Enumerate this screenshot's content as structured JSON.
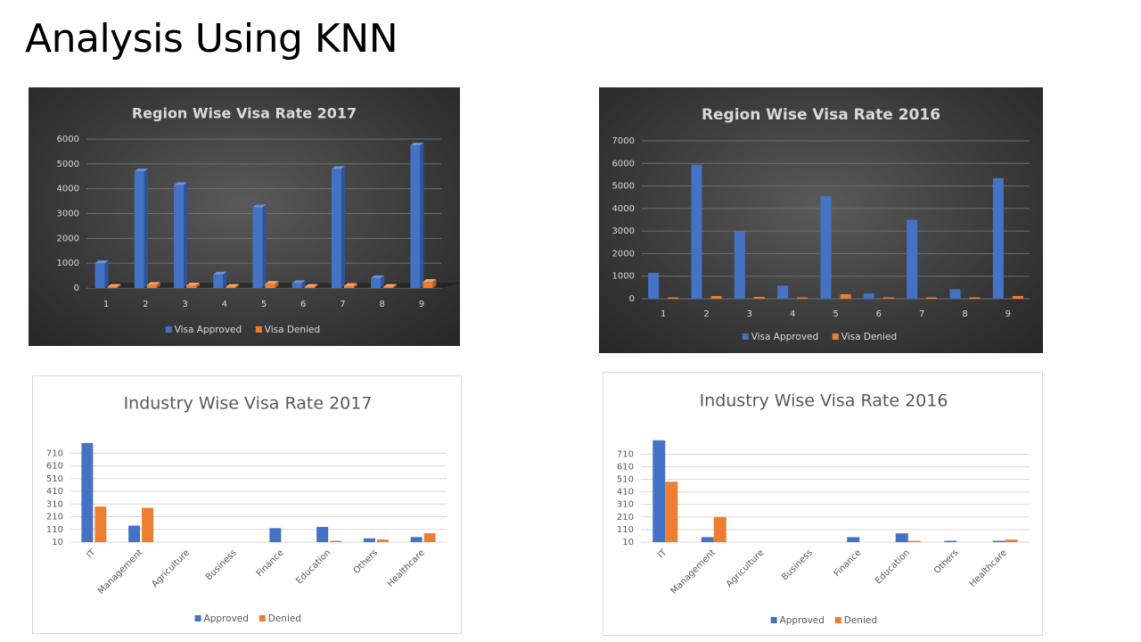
{
  "slide": {
    "title": "Analysis Using KNN"
  },
  "colors": {
    "approved": "#4472c4",
    "denied": "#ed7d31",
    "dark_text": "#d9d9d9",
    "light_text": "#595959"
  },
  "chart_data": [
    {
      "id": "region2017",
      "type": "bar",
      "title": "Region Wise Visa Rate 2017",
      "categories": [
        "1",
        "2",
        "3",
        "4",
        "5",
        "6",
        "7",
        "8",
        "9"
      ],
      "series": [
        {
          "name": "Visa Approved",
          "values": [
            1000,
            4700,
            4150,
            550,
            3250,
            200,
            4800,
            400,
            5750
          ]
        },
        {
          "name": "Visa Denied",
          "values": [
            40,
            130,
            110,
            40,
            170,
            10,
            90,
            50,
            250
          ]
        }
      ],
      "yticks": [
        0,
        1000,
        2000,
        3000,
        4000,
        5000,
        6000
      ],
      "ylim": [
        0,
        6000
      ],
      "grid": true,
      "legend": "bottom"
    },
    {
      "id": "region2016",
      "type": "bar",
      "title": "Region Wise Visa Rate 2016",
      "categories": [
        "1",
        "2",
        "3",
        "4",
        "5",
        "6",
        "7",
        "8",
        "9"
      ],
      "series": [
        {
          "name": "Visa Approved",
          "values": [
            1150,
            5950,
            3000,
            580,
            4550,
            230,
            3500,
            420,
            5350
          ]
        },
        {
          "name": "Visa Denied",
          "values": [
            20,
            120,
            80,
            10,
            200,
            5,
            50,
            10,
            120
          ]
        }
      ],
      "yticks": [
        0,
        1000,
        2000,
        3000,
        4000,
        5000,
        6000,
        7000
      ],
      "ylim": [
        0,
        7000
      ],
      "grid": true,
      "legend": "bottom"
    },
    {
      "id": "industry2017",
      "type": "bar",
      "title": "Industry Wise Visa Rate 2017",
      "categories": [
        "IT",
        "Management",
        "Agriculture",
        "Business",
        "Finance",
        "Education",
        "Others",
        "Healthcare"
      ],
      "series": [
        {
          "name": "Approved",
          "values": [
            790,
            140,
            0,
            0,
            120,
            130,
            40,
            50
          ]
        },
        {
          "name": "Denied",
          "values": [
            290,
            280,
            0,
            0,
            0,
            10,
            30,
            80
          ]
        }
      ],
      "yticks": [
        10,
        110,
        210,
        310,
        410,
        510,
        610,
        710
      ],
      "ylim": [
        10,
        810
      ],
      "grid": true,
      "legend": "bottom"
    },
    {
      "id": "industry2016",
      "type": "bar",
      "title": "Industry Wise Visa Rate 2016",
      "categories": [
        "IT",
        "Management",
        "Agriculture",
        "Business",
        "Finance",
        "Education",
        "Others",
        "Healthcare"
      ],
      "series": [
        {
          "name": "Approved",
          "values": [
            820,
            50,
            0,
            0,
            50,
            80,
            10,
            10
          ]
        },
        {
          "name": "Denied",
          "values": [
            490,
            210,
            0,
            0,
            0,
            20,
            0,
            30
          ]
        }
      ],
      "yticks": [
        10,
        110,
        210,
        310,
        410,
        510,
        610,
        710
      ],
      "ylim": [
        10,
        840
      ],
      "grid": true,
      "legend": "bottom"
    }
  ]
}
